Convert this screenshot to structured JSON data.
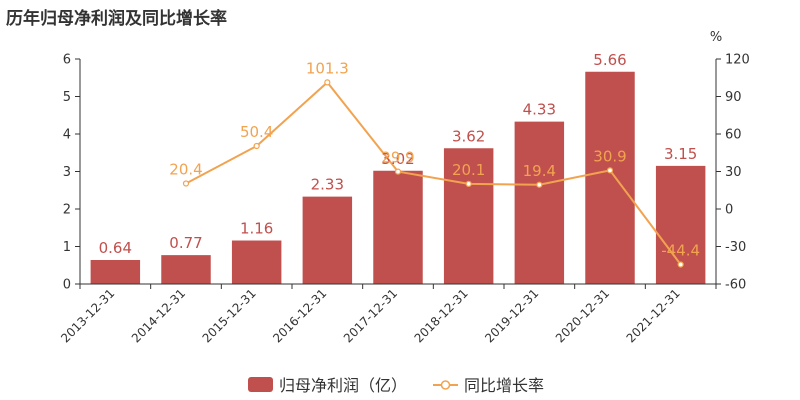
{
  "chart_data": {
    "type": "bar",
    "title": "历年归母净利润及同比增长率",
    "categories": [
      "2013-12-31",
      "2014-12-31",
      "2015-12-31",
      "2016-12-31",
      "2017-12-31",
      "2018-12-31",
      "2019-12-31",
      "2020-12-31",
      "2021-12-31"
    ],
    "series": [
      {
        "name": "归母净利润（亿）",
        "type": "bar",
        "axis": "left",
        "color": "#c0504d",
        "values": [
          0.64,
          0.77,
          1.16,
          2.33,
          3.02,
          3.62,
          4.33,
          5.66,
          3.15
        ],
        "labels": [
          "0.64",
          "0.77",
          "1.16",
          "2.33",
          "3.02",
          "3.62",
          "4.33",
          "5.66",
          "3.15"
        ]
      },
      {
        "name": "同比增长率",
        "type": "line",
        "axis": "right",
        "color": "#f2a350",
        "values": [
          null,
          20.4,
          50.4,
          101.3,
          29.9,
          20.1,
          19.4,
          30.9,
          -44.4
        ],
        "labels": [
          "",
          "20.4",
          "50.4",
          "101.3",
          "29.9",
          "20.1",
          "19.4",
          "30.9",
          "-44.4"
        ]
      }
    ],
    "y_left": {
      "min": 0,
      "max": 6,
      "ticks": [
        "0",
        "1",
        "2",
        "3",
        "4",
        "5",
        "6"
      ]
    },
    "y_right": {
      "min": -60,
      "max": 120,
      "ticks": [
        "-60",
        "-30",
        "0",
        "30",
        "60",
        "90",
        "120"
      ],
      "unit": "%"
    },
    "grid": false,
    "legend_position": "bottom-center"
  }
}
